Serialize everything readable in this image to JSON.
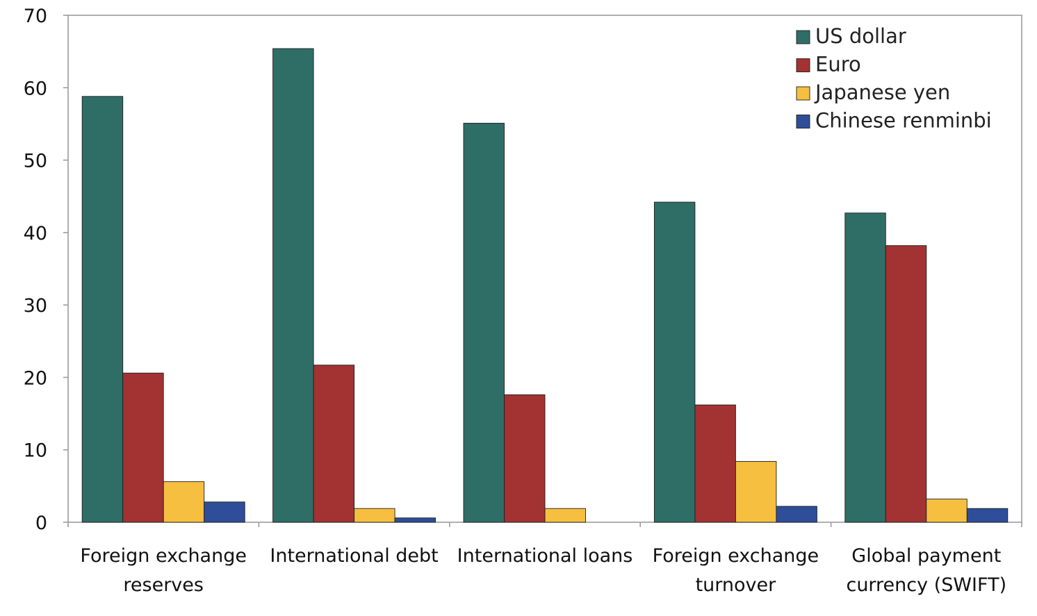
{
  "chart_data": {
    "type": "bar",
    "title": "",
    "xlabel": "",
    "ylabel": "",
    "ylim": [
      0,
      70
    ],
    "y_ticks": [
      0,
      10,
      20,
      30,
      40,
      50,
      60,
      70
    ],
    "grid": false,
    "legend_position": "top-right",
    "categories": [
      [
        "Foreign exchange",
        "reserves"
      ],
      [
        "International debt"
      ],
      [
        "International loans"
      ],
      [
        "Foreign exchange",
        "turnover"
      ],
      [
        "Global payment",
        "currency (SWIFT)"
      ]
    ],
    "series": [
      {
        "name": "US dollar",
        "color": "#2e6e66",
        "values": [
          58.8,
          65.4,
          55.1,
          44.2,
          42.7
        ]
      },
      {
        "name": "Euro",
        "color": "#a33233",
        "values": [
          20.6,
          21.7,
          17.6,
          16.2,
          38.2
        ]
      },
      {
        "name": "Japanese yen",
        "color": "#f6bf40",
        "values": [
          5.6,
          1.9,
          1.9,
          8.4,
          3.2
        ]
      },
      {
        "name": "Chinese renminbi",
        "color": "#2f4e99",
        "values": [
          2.8,
          0.6,
          0,
          2.2,
          1.9
        ]
      }
    ]
  }
}
